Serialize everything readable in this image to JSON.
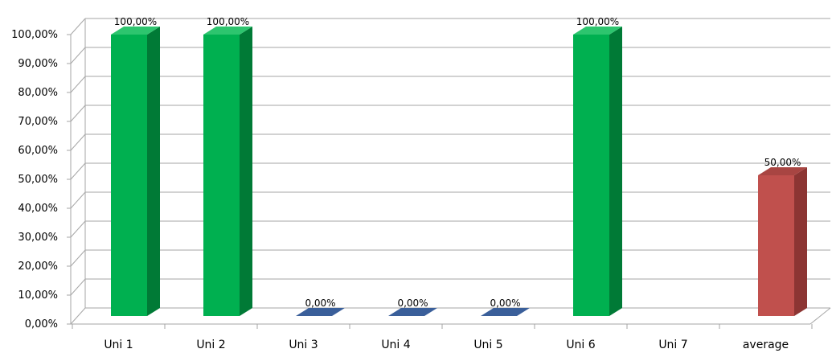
{
  "chart_data": {
    "type": "bar",
    "categories": [
      "Uni 1",
      "Uni 2",
      "Uni 3",
      "Uni 4",
      "Uni 5",
      "Uni 6",
      "Uni 7",
      "average"
    ],
    "values": [
      1.0,
      1.0,
      0.0,
      0.0,
      0.0,
      1.0,
      null,
      0.5
    ],
    "data_labels": [
      "100,00%",
      "100,00%",
      "0,00%",
      "0,00%",
      "0,00%",
      "100,00%",
      "",
      "50,00%"
    ],
    "y_ticks": [
      "0,00%",
      "10,00%",
      "20,00%",
      "30,00%",
      "40,00%",
      "50,00%",
      "60,00%",
      "70,00%",
      "80,00%",
      "90,00%",
      "100,00%"
    ],
    "ylim": [
      0,
      1
    ],
    "grid": true,
    "legend": "none",
    "title": "",
    "xlabel": "",
    "ylabel": "",
    "colors": {
      "green_face": "#00B050",
      "green_side": "#007A36",
      "green_top": "#2DC56E",
      "blue_face": "#3A5F9A",
      "red_face": "#C0504D",
      "red_side": "#8C3533",
      "red_top": "#A84542",
      "grid": "#A6A6A6"
    },
    "bar_colors": [
      "green",
      "green",
      "blue",
      "blue",
      "blue",
      "green",
      "none",
      "red"
    ]
  }
}
